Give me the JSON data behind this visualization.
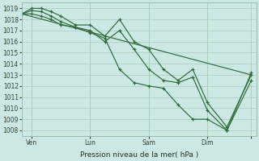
{
  "title": "",
  "xlabel": "Pression niveau de la mer( hPa )",
  "ylabel": "",
  "background_color": "#cce8e4",
  "grid_color": "#aaccbb",
  "line_color": "#2d6b3a",
  "ylim": [
    1007.5,
    1019.5
  ],
  "yticks": [
    1008,
    1009,
    1010,
    1011,
    1012,
    1013,
    1014,
    1015,
    1016,
    1017,
    1018,
    1019
  ],
  "xlim": [
    0,
    240
  ],
  "day_positions": [
    10,
    70,
    130,
    190,
    235
  ],
  "day_labels": [
    "Ven",
    "Lun",
    "Sam",
    "Dim",
    ""
  ],
  "series": [
    {
      "x": [
        0,
        10,
        20,
        30,
        40,
        55,
        70,
        85,
        100,
        115,
        130,
        145,
        160,
        175,
        190,
        210,
        235
      ],
      "y": [
        1018.5,
        1019.0,
        1019.0,
        1018.7,
        1018.3,
        1017.5,
        1017.5,
        1016.5,
        1018.0,
        1016.0,
        1015.3,
        1013.5,
        1012.5,
        1013.5,
        1010.5,
        1008.3,
        1013.0
      ],
      "marker": true
    },
    {
      "x": [
        0,
        10,
        20,
        30,
        40,
        55,
        70,
        85,
        100,
        115,
        130,
        145,
        160,
        175,
        190,
        210,
        235
      ],
      "y": [
        1018.5,
        1018.8,
        1018.7,
        1018.3,
        1017.8,
        1017.3,
        1017.0,
        1016.0,
        1017.0,
        1015.3,
        1013.5,
        1012.5,
        1012.3,
        1012.8,
        1009.8,
        1008.0,
        1012.5
      ],
      "marker": true
    },
    {
      "x": [
        0,
        10,
        20,
        30,
        40,
        55,
        70,
        85,
        100,
        115,
        130,
        145,
        160,
        175,
        190,
        210,
        235
      ],
      "y": [
        1018.5,
        1018.5,
        1018.3,
        1018.0,
        1017.5,
        1017.3,
        1016.8,
        1016.3,
        1013.5,
        1012.3,
        1012.0,
        1011.8,
        1010.3,
        1009.0,
        1009.0,
        1008.0,
        1013.2
      ],
      "marker": true
    },
    {
      "x": [
        0,
        235
      ],
      "y": [
        1018.5,
        1013.0
      ],
      "marker": false
    }
  ]
}
